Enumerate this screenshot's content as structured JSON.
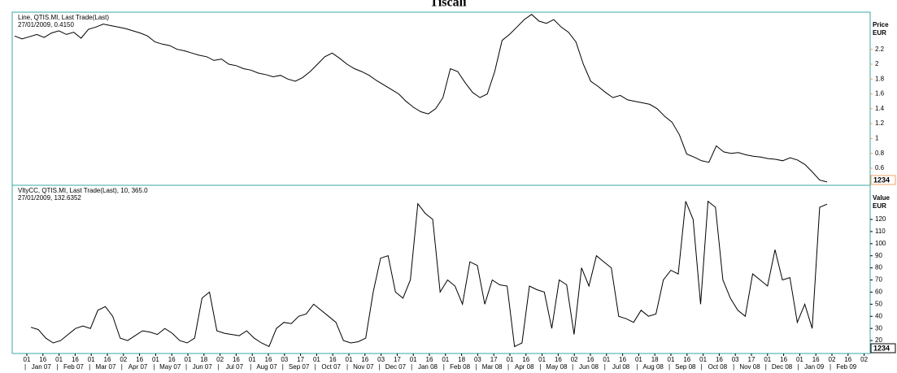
{
  "title": "Tiscali",
  "x_axis": {
    "day_ticks": [
      "01",
      "16",
      "01",
      "16",
      "01",
      "16",
      "02",
      "16",
      "01",
      "16",
      "01",
      "18",
      "02",
      "16",
      "01",
      "16",
      "03",
      "17",
      "01",
      "16",
      "01",
      "16",
      "03",
      "17",
      "01",
      "16",
      "01",
      "18",
      "03",
      "17",
      "01",
      "16",
      "01",
      "16",
      "02",
      "16",
      "01",
      "16",
      "01",
      "18",
      "01",
      "16",
      "01",
      "16",
      "03",
      "17",
      "01",
      "16",
      "01",
      "16",
      "02",
      "16",
      "02"
    ],
    "months": [
      "Jan 07",
      "Feb 07",
      "Mar 07",
      "Apr 07",
      "May 07",
      "Jun 07",
      "Jul 07",
      "Aug 07",
      "Sep 07",
      "Oct 07",
      "Nov 07",
      "Dec 07",
      "Jan 08",
      "Feb 08",
      "Mar 08",
      "Apr 08",
      "May 08",
      "Jun 08",
      "Jul 08",
      "Aug 08",
      "Sep 08",
      "Oct 08",
      "Nov 08",
      "Dec 08",
      "Jan 09",
      "Feb 09"
    ]
  },
  "chart_data": [
    {
      "type": "line",
      "header": "Line, QTIS.MI, Last Trade(Last)",
      "subheader": "27/01/2009, 0.4150",
      "axis_title": "Price",
      "axis_unit": "EUR",
      "value_tag": "1234",
      "series": [
        {
          "name": "QTIS.MI",
          "color": "#000000",
          "values": [
            2.38,
            2.34,
            2.37,
            2.4,
            2.36,
            2.42,
            2.45,
            2.4,
            2.43,
            2.35,
            2.47,
            2.5,
            2.54,
            2.52,
            2.5,
            2.48,
            2.45,
            2.42,
            2.38,
            2.3,
            2.27,
            2.25,
            2.2,
            2.18,
            2.15,
            2.12,
            2.1,
            2.05,
            2.07,
            2.0,
            1.98,
            1.94,
            1.92,
            1.88,
            1.86,
            1.83,
            1.85,
            1.8,
            1.77,
            1.82,
            1.9,
            2.0,
            2.1,
            2.15,
            2.08,
            2.0,
            1.94,
            1.9,
            1.85,
            1.78,
            1.72,
            1.66,
            1.6,
            1.5,
            1.42,
            1.36,
            1.33,
            1.4,
            1.55,
            1.94,
            1.9,
            1.75,
            1.62,
            1.55,
            1.6,
            1.9,
            2.32,
            2.4,
            2.5,
            2.6,
            2.67,
            2.58,
            2.55,
            2.6,
            2.5,
            2.43,
            2.3,
            2.0,
            1.77,
            1.7,
            1.62,
            1.55,
            1.58,
            1.52,
            1.5,
            1.48,
            1.46,
            1.4,
            1.3,
            1.22,
            1.05,
            0.79,
            0.75,
            0.7,
            0.68,
            0.9,
            0.82,
            0.8,
            0.81,
            0.78,
            0.76,
            0.75,
            0.73,
            0.72,
            0.7,
            0.74,
            0.71,
            0.65,
            0.55,
            0.44,
            0.415
          ]
        }
      ],
      "ylim": [
        0.37,
        2.7
      ],
      "yticks": [
        0.6,
        0.8,
        1,
        1.2,
        1.4,
        1.6,
        1.8,
        2,
        2.2
      ]
    },
    {
      "type": "line",
      "header": "VltyCC, QTIS.MI, Last Trade(Last),  10, 365.0",
      "subheader": "27/01/2009, 132.6352",
      "axis_title": "Value",
      "axis_unit": "EUR",
      "value_tag": "1234",
      "series": [
        {
          "name": "VltyCC",
          "color": "#000000",
          "values": [
            31,
            29,
            22,
            18,
            20,
            25,
            30,
            32,
            30,
            45,
            48,
            40,
            22,
            20,
            24,
            28,
            27,
            25,
            30,
            26,
            20,
            18,
            22,
            55,
            60,
            28,
            26,
            25,
            24,
            28,
            22,
            18,
            15,
            30,
            35,
            34,
            40,
            42,
            50,
            45,
            40,
            35,
            20,
            18,
            19,
            22,
            60,
            88,
            90,
            60,
            55,
            70,
            133,
            125,
            120,
            60,
            70,
            65,
            50,
            85,
            82,
            50,
            70,
            66,
            65,
            15,
            18,
            65,
            62,
            60,
            30,
            70,
            66,
            25,
            80,
            65,
            90,
            85,
            80,
            40,
            38,
            35,
            45,
            40,
            42,
            70,
            78,
            75,
            135,
            120,
            50,
            135,
            130,
            70,
            55,
            45,
            40,
            75,
            70,
            65,
            95,
            70,
            72,
            35,
            50,
            30,
            130,
            132.6352
          ]
        }
      ],
      "ylim": [
        9.3,
        148.2
      ],
      "yticks": [
        20,
        30,
        40,
        50,
        60,
        70,
        80,
        90,
        100,
        110,
        120
      ]
    }
  ]
}
